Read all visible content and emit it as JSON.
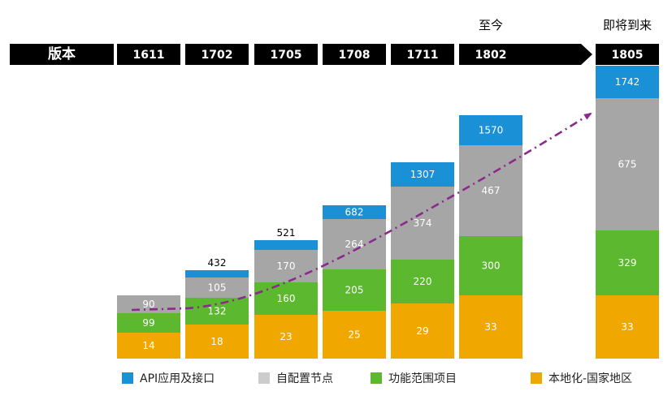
{
  "chart_data": {
    "type": "bar",
    "stacked": true,
    "header": {
      "row_label": "版本",
      "above_labels": [
        {
          "text": "至今",
          "version": "1802"
        },
        {
          "text": "即将到来",
          "version": "1805"
        }
      ]
    },
    "categories": [
      "1611",
      "1702",
      "1705",
      "1708",
      "1711",
      "1802",
      "1805"
    ],
    "series": [
      {
        "name": "本地化-国家地区",
        "color": "#f0a800",
        "values": [
          14,
          18,
          23,
          25,
          29,
          33,
          33
        ]
      },
      {
        "name": "功能范围项目",
        "color": "#5cb82e",
        "values": [
          99,
          132,
          160,
          205,
          220,
          300,
          329
        ]
      },
      {
        "name": "自配置节点",
        "color": "#a6a6a6",
        "values": [
          90,
          105,
          170,
          264,
          374,
          467,
          675
        ]
      },
      {
        "name": "API应用及接口",
        "color": "#1a90d6",
        "values": [
          null,
          432,
          521,
          682,
          1307,
          1570,
          1742
        ]
      }
    ],
    "legend_order": [
      "API应用及接口",
      "自配置节点",
      "功能范围项目",
      "本地化-国家地区"
    ],
    "legend_colors": {
      "API应用及接口": "#1a90d6",
      "自配置节点": "#cccccc",
      "功能范围项目": "#5cb82e",
      "本地化-国家地区": "#f0a800"
    },
    "trend_line": {
      "style": "dash-dot",
      "color": "#8b2a8b",
      "arrow": true
    },
    "legend": "bottom",
    "grid": false,
    "axes_visible": false
  }
}
